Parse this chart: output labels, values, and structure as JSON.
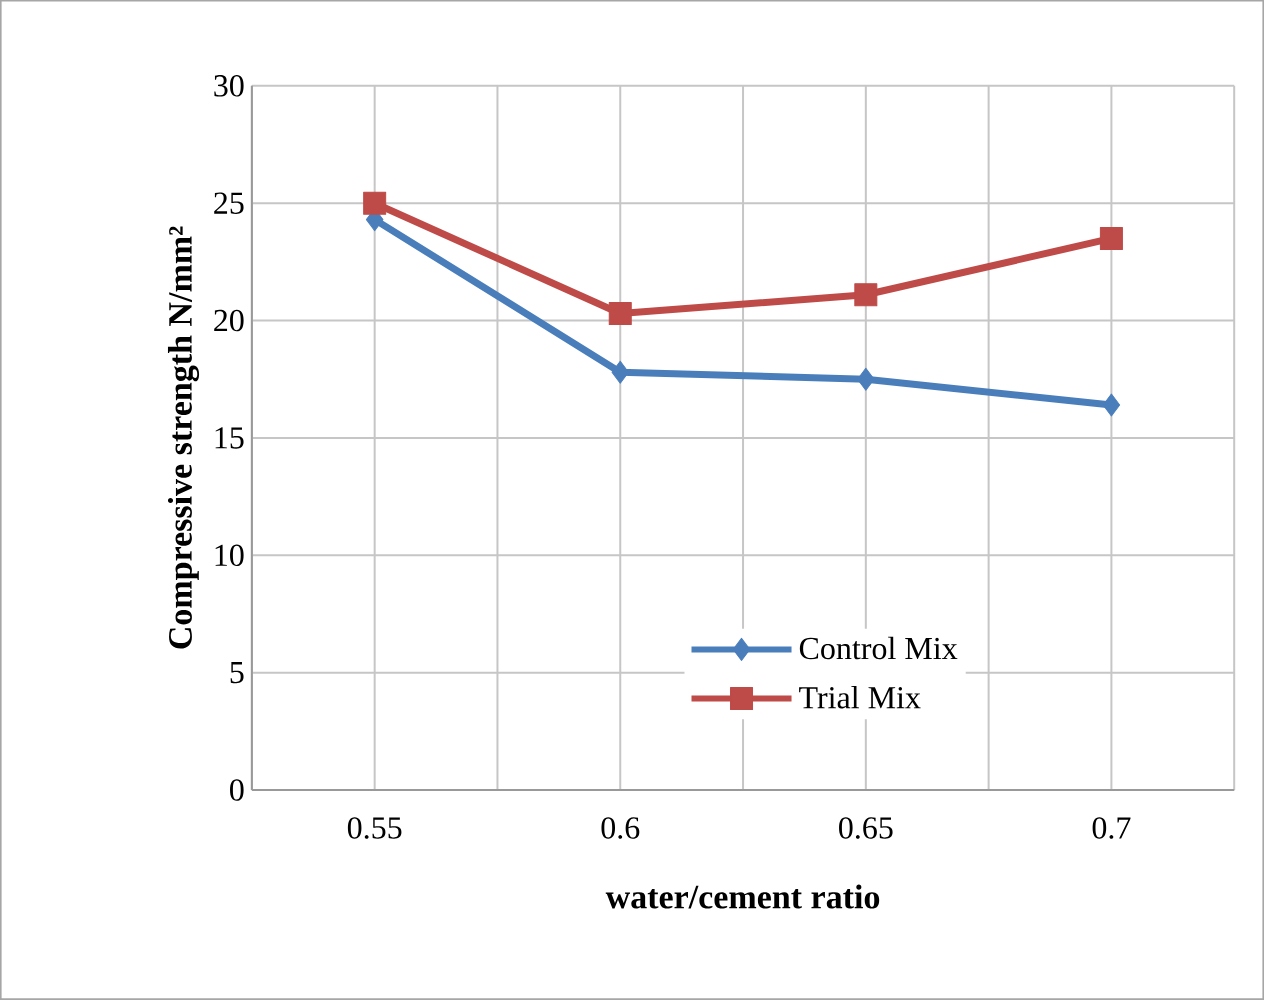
{
  "chart_data": {
    "type": "line",
    "xlabel": "water/cement ratio",
    "ylabel": "Compressive strength N/mm²",
    "categories": [
      "0.55",
      "0.6",
      "0.65",
      "0.7"
    ],
    "series": [
      {
        "name": "Control Mix",
        "color": "#4a7ebb",
        "marker": "diamond",
        "values": [
          24.3,
          17.8,
          17.5,
          16.4
        ]
      },
      {
        "name": "Trial Mix",
        "color": "#be4b48",
        "marker": "square",
        "values": [
          25.0,
          20.3,
          21.1,
          23.5
        ]
      }
    ],
    "ylim": [
      0,
      30
    ],
    "yticks": [
      0,
      5,
      10,
      15,
      20,
      25,
      30
    ],
    "grid": true,
    "legend": "bottom right"
  }
}
